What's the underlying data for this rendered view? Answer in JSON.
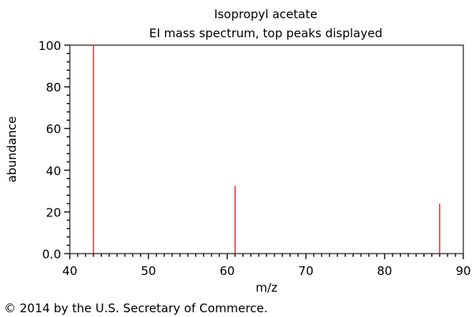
{
  "chart_data": {
    "type": "bar",
    "title": "Isopropyl acetate",
    "subtitle": "EI mass spectrum, top peaks displayed",
    "xlabel": "m/z",
    "ylabel": "abundance",
    "xlim": [
      40,
      90
    ],
    "ylim": [
      0,
      100
    ],
    "x_ticks": [
      "40",
      "50",
      "60",
      "70",
      "80",
      "90"
    ],
    "y_ticks": [
      "0.0",
      "20",
      "40",
      "60",
      "80",
      "100"
    ],
    "grid": false,
    "series": [
      {
        "name": "peaks",
        "color": "#e8252b",
        "x": [
          43,
          61,
          87
        ],
        "values": [
          100,
          32.5,
          24
        ]
      }
    ]
  },
  "footer": {
    "copyright": "© 2014 by the U.S. Secretary of Commerce."
  }
}
